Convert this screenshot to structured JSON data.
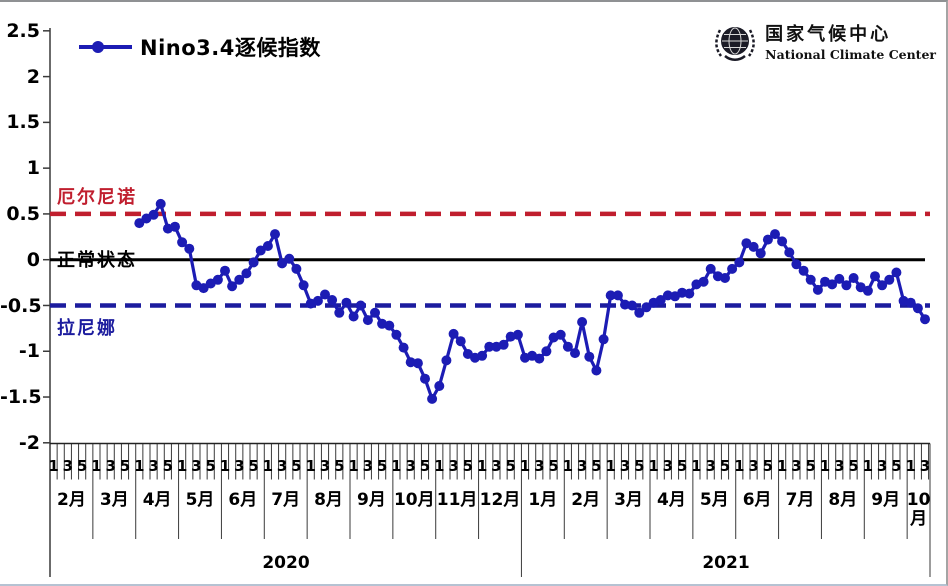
{
  "legend": {
    "label": "Nino3.4逐候指数"
  },
  "logo": {
    "cn": "国家气候中心",
    "en": "National Climate Center"
  },
  "annotations": {
    "el_nino": "厄尔尼诺",
    "normal": "正常状态",
    "la_nina": "拉尼娜"
  },
  "colors": {
    "line": "#1c1cb4",
    "dot": "#1c1cb4",
    "el_nino_line": "#c01e2e",
    "normal_line": "#000000",
    "la_nina_line": "#1c1c9e",
    "axis": "#3a3a3a"
  },
  "y_axis": {
    "ticks": [
      "2.5",
      "2",
      "1.5",
      "1",
      "0.5",
      "0",
      "-0.5",
      "-1",
      "-1.5",
      "-2"
    ]
  },
  "x_axis": {
    "pentad_labels_full": [
      "1",
      "3",
      "5"
    ],
    "pentad_labels_last": [
      "1",
      "3"
    ],
    "years": [
      {
        "label": "2020",
        "months": [
          "2月",
          "3月",
          "4月",
          "5月",
          "6月",
          "7月",
          "8月",
          "9月",
          "10月",
          "11月",
          "12月"
        ]
      },
      {
        "label": "2021",
        "months": [
          "1月",
          "2月",
          "3月",
          "4月",
          "5月",
          "6月",
          "7月",
          "8月",
          "9月",
          "10月"
        ]
      }
    ]
  },
  "chart_data": {
    "type": "line",
    "title": "Nino3.4逐候指数",
    "series_name": "Nino3.4逐候指数",
    "x_unit": "候 (pentad, 6 per month)",
    "x_range": "2020年2月 — 2021年10月 (data starts 2020年4月第1候, ends 2021年10月第3候)",
    "ylim": [
      -2,
      2.5
    ],
    "grid": false,
    "legend_position": "top-left",
    "reference_lines": [
      {
        "label": "厄尔尼诺",
        "value": 0.5,
        "style": "red dashed"
      },
      {
        "label": "正常状态",
        "value": 0,
        "style": "black solid"
      },
      {
        "label": "拉尼娜",
        "value": -0.5,
        "style": "blue dashed"
      }
    ],
    "start_pentad_index": 12,
    "values_by_month": [
      {
        "month": "2020-04",
        "values": [
          0.4,
          0.45,
          0.49,
          0.61,
          0.34,
          0.36
        ]
      },
      {
        "month": "2020-05",
        "values": [
          0.19,
          0.12,
          -0.28,
          -0.31,
          -0.26,
          -0.22
        ]
      },
      {
        "month": "2020-06",
        "values": [
          -0.12,
          -0.29,
          -0.22,
          -0.15,
          -0.03,
          0.1
        ]
      },
      {
        "month": "2020-07",
        "values": [
          0.15,
          0.28,
          -0.04,
          0.01,
          -0.1,
          -0.28
        ]
      },
      {
        "month": "2020-08",
        "values": [
          -0.48,
          -0.45,
          -0.38,
          -0.44,
          -0.58,
          -0.47
        ]
      },
      {
        "month": "2020-09",
        "values": [
          -0.62,
          -0.5,
          -0.66,
          -0.58,
          -0.7,
          -0.72
        ]
      },
      {
        "month": "2020-10",
        "values": [
          -0.82,
          -0.96,
          -1.12,
          -1.13,
          -1.3,
          -1.52
        ]
      },
      {
        "month": "2020-11",
        "values": [
          -1.38,
          -1.1,
          -0.81,
          -0.89,
          -1.03,
          -1.07
        ]
      },
      {
        "month": "2020-12",
        "values": [
          -1.05,
          -0.95,
          -0.95,
          -0.93,
          -0.84,
          -0.82
        ]
      },
      {
        "month": "2021-01",
        "values": [
          -1.07,
          -1.05,
          -1.08,
          -1.0,
          -0.85,
          -0.82
        ]
      },
      {
        "month": "2021-02",
        "values": [
          -0.95,
          -1.02,
          -0.68,
          -1.06,
          -1.21,
          -0.87
        ]
      },
      {
        "month": "2021-03",
        "values": [
          -0.39,
          -0.39,
          -0.49,
          -0.5,
          -0.58,
          -0.52
        ]
      },
      {
        "month": "2021-04",
        "values": [
          -0.47,
          -0.44,
          -0.39,
          -0.4,
          -0.36,
          -0.37
        ]
      },
      {
        "month": "2021-05",
        "values": [
          -0.27,
          -0.24,
          -0.1,
          -0.18,
          -0.2,
          -0.1
        ]
      },
      {
        "month": "2021-06",
        "values": [
          -0.03,
          0.18,
          0.14,
          0.07,
          0.22,
          0.28
        ]
      },
      {
        "month": "2021-07",
        "values": [
          0.2,
          0.08,
          -0.05,
          -0.12,
          -0.22,
          -0.33
        ]
      },
      {
        "month": "2021-08",
        "values": [
          -0.24,
          -0.27,
          -0.21,
          -0.28,
          -0.2,
          -0.3
        ]
      },
      {
        "month": "2021-09",
        "values": [
          -0.34,
          -0.18,
          -0.28,
          -0.22,
          -0.14,
          -0.45
        ]
      },
      {
        "month": "2021-10",
        "values": [
          -0.47,
          -0.53,
          -0.65
        ]
      }
    ]
  }
}
